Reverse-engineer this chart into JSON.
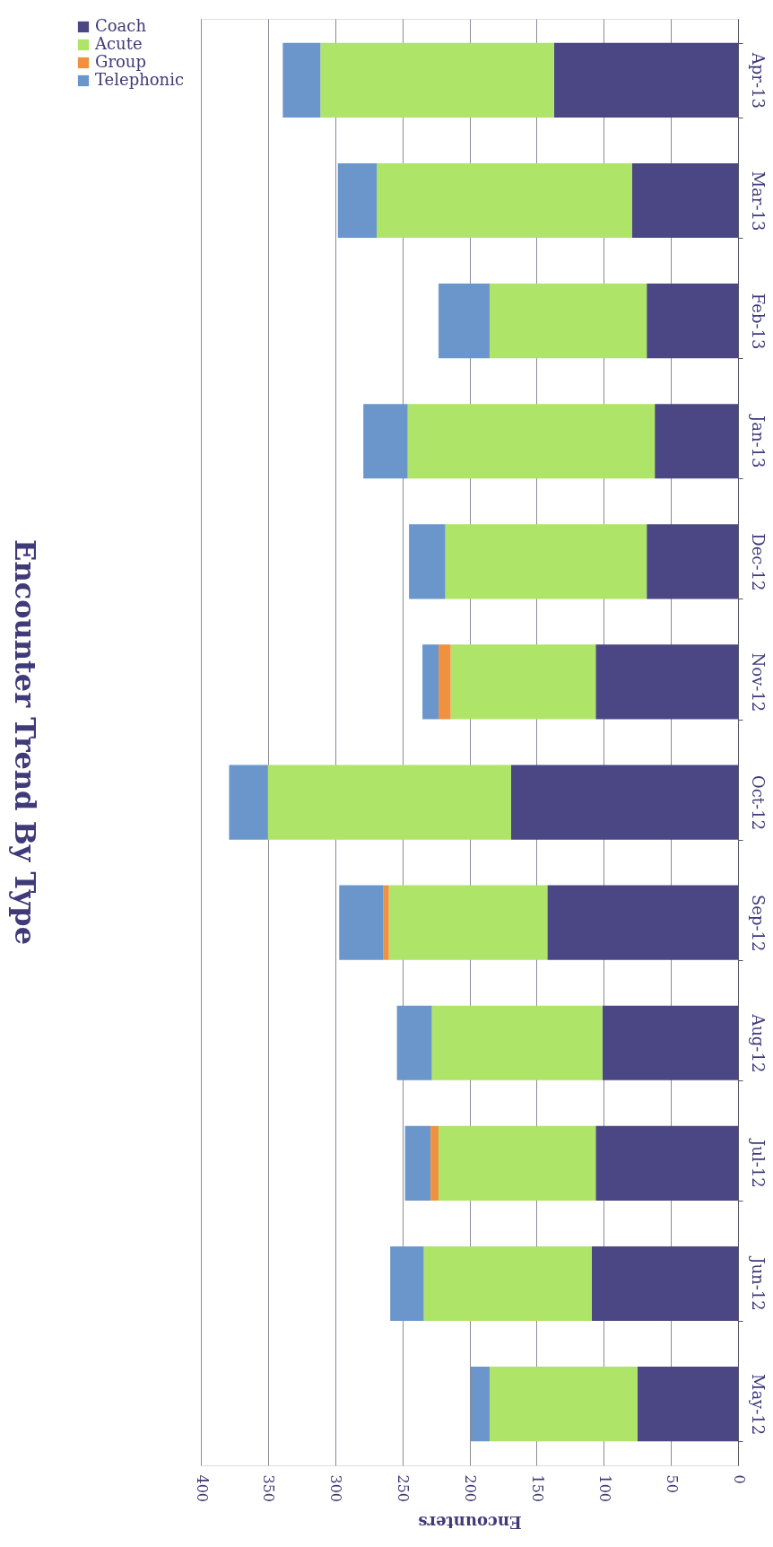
{
  "chart_data": {
    "type": "bar",
    "title": "Encounter Trend By Type",
    "xlabel": "Encounters",
    "orientation": "horizontal",
    "stacked": true,
    "categories": [
      "Apr-13",
      "Mar-13",
      "Feb-13",
      "Jan-13",
      "Dec-12",
      "Nov-12",
      "Oct-12",
      "Sep-12",
      "Aug-12",
      "Jul-12",
      "Jun-12",
      "May-12"
    ],
    "series": [
      {
        "name": "Coach",
        "color": "#4b4785",
        "values": [
          137,
          79,
          68,
          62,
          68,
          106,
          169,
          142,
          101,
          106,
          109,
          75
        ]
      },
      {
        "name": "Acute",
        "color": "#aee467",
        "values": [
          174,
          190,
          117,
          184,
          150,
          108,
          181,
          118,
          127,
          117,
          125,
          110
        ]
      },
      {
        "name": "Group",
        "color": "#f0913f",
        "values": [
          null,
          null,
          null,
          null,
          null,
          9,
          null,
          4,
          null,
          6,
          null,
          null
        ]
      },
      {
        "name": "Telephonic",
        "color": "#6a96cc",
        "values": [
          28,
          29,
          38,
          33,
          27,
          12,
          29,
          33,
          26,
          19,
          25,
          14
        ]
      }
    ],
    "xlim": [
      400,
      0
    ],
    "xticks": [
      0,
      50,
      100,
      150,
      200,
      250,
      300,
      350,
      400
    ],
    "grid": "x",
    "legend": "left"
  }
}
